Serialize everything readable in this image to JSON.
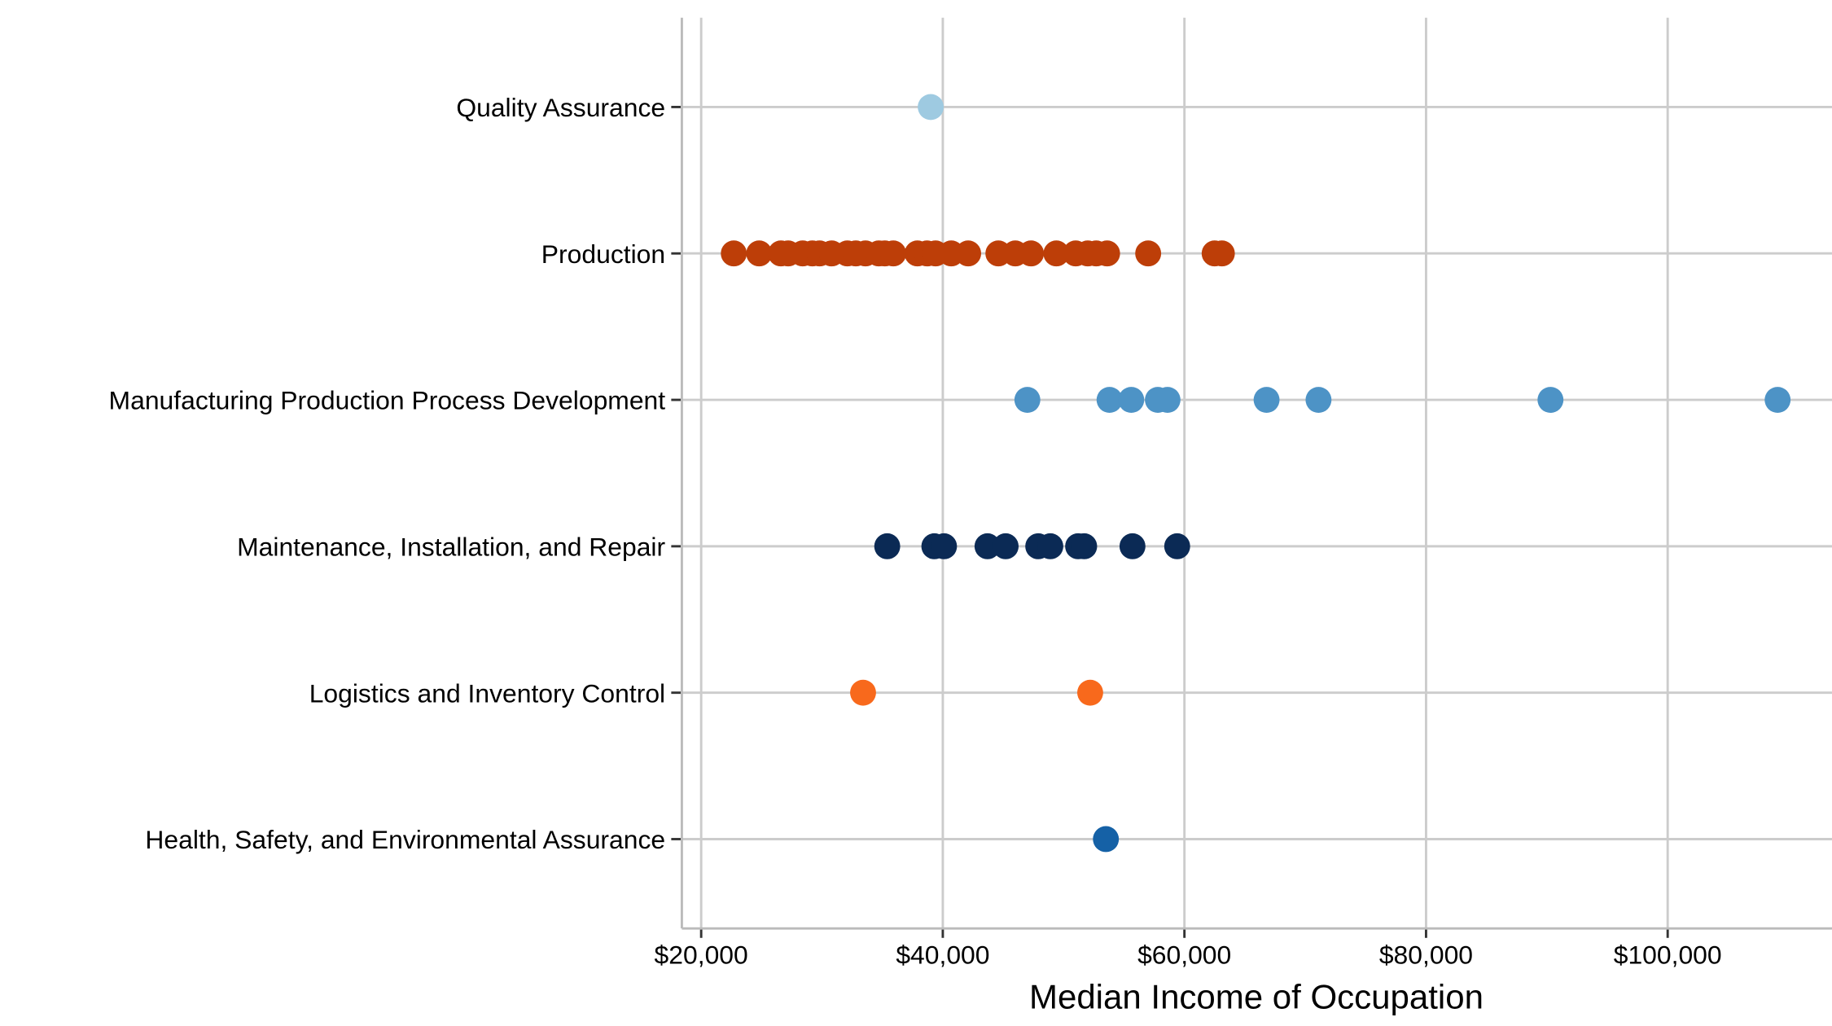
{
  "chart_data": {
    "type": "strip",
    "x_label": "Median Income of Occupation",
    "categories": [
      "Quality Assurance",
      "Production",
      "Manufacturing Production Process Development",
      "Maintenance, Installation, and Repair",
      "Logistics and Inventory Control",
      "Health, Safety, and Environmental Assurance"
    ],
    "colors": [
      "#9ecae1",
      "#bd3e08",
      "#4d93c6",
      "#0b2a55",
      "#f8691c",
      "#1561a6"
    ],
    "values": [
      [
        39000
      ],
      [
        22700,
        24800,
        26600,
        27200,
        28400,
        29200,
        29800,
        30800,
        32100,
        32800,
        33600,
        34700,
        35200,
        35900,
        37900,
        38700,
        39400,
        40700,
        42100,
        44600,
        46000,
        47300,
        49400,
        51000,
        52000,
        52700,
        53600,
        57000,
        62500,
        63100
      ],
      [
        47000,
        53800,
        55600,
        57800,
        58600,
        66800,
        71100,
        90300,
        109100
      ],
      [
        35400,
        39300,
        40100,
        43700,
        45200,
        47900,
        48900,
        51200,
        51700,
        55700,
        59400
      ],
      [
        33400,
        52200
      ],
      [
        53500
      ]
    ],
    "xlim": [
      18400,
      113600
    ],
    "xticks": [
      {
        "value": 20000,
        "label": "$20,000"
      },
      {
        "value": 40000,
        "label": "$40,000"
      },
      {
        "value": 60000,
        "label": "$60,000"
      },
      {
        "value": 80000,
        "label": "$80,000"
      },
      {
        "value": 100000,
        "label": "$100,000"
      }
    ],
    "grid": true
  }
}
